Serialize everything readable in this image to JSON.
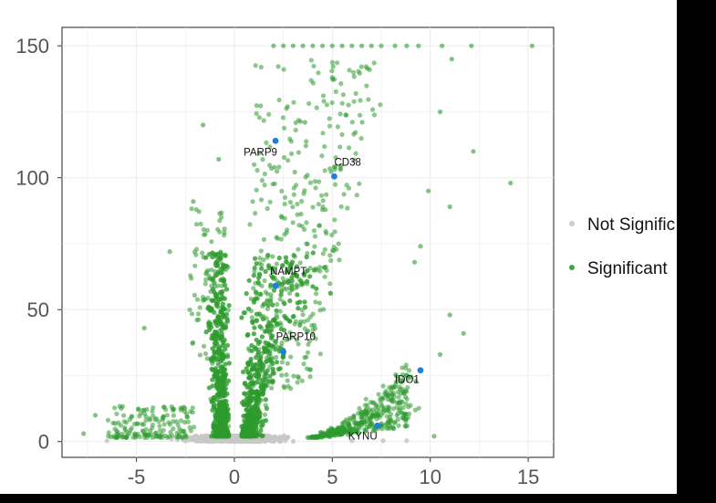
{
  "chart_data": {
    "type": "scatter",
    "title": "",
    "xlabel": "",
    "ylabel": "",
    "xlim": [
      -8.8,
      16.3
    ],
    "ylim": [
      -6,
      157
    ],
    "x_ticks": [
      "-5",
      "0",
      "5",
      "10",
      "15"
    ],
    "y_ticks": [
      "0",
      "50",
      "100",
      "150"
    ],
    "grid": true,
    "legend_position": "right",
    "colors": {
      "not_significant": "#c8c8c8",
      "significant": "#2e9a2e",
      "highlight": "#1e7fe0",
      "background": "#ffffff",
      "grid": "#ebebeb"
    },
    "legend": [
      {
        "label": "Not Signific",
        "color": "#c8c8c8"
      },
      {
        "label": "Significant",
        "color": "#2e9a2e"
      }
    ],
    "highlighted_genes": [
      {
        "gene": "PARP9",
        "x": 2.1,
        "y": 114
      },
      {
        "gene": "CD38",
        "x": 5.1,
        "y": 100.5
      },
      {
        "gene": "NAMPT",
        "x": 2.1,
        "y": 59
      },
      {
        "gene": "PARP10",
        "x": 2.5,
        "y": 34
      },
      {
        "gene": "IDO1",
        "x": 9.5,
        "y": 27
      },
      {
        "gene": "KYNU",
        "x": 7.3,
        "y": 6
      }
    ],
    "significant_points": [
      {
        "x": 2,
        "y": 150
      },
      {
        "x": 2.5,
        "y": 150
      },
      {
        "x": 3,
        "y": 150
      },
      {
        "x": 3.5,
        "y": 150
      },
      {
        "x": 4,
        "y": 150
      },
      {
        "x": 4.5,
        "y": 150
      },
      {
        "x": 5,
        "y": 150
      },
      {
        "x": 5.5,
        "y": 150
      },
      {
        "x": 6,
        "y": 150
      },
      {
        "x": 6.5,
        "y": 150
      },
      {
        "x": 7,
        "y": 150
      },
      {
        "x": 7.5,
        "y": 150
      },
      {
        "x": 8.2,
        "y": 150
      },
      {
        "x": 8.8,
        "y": 150
      },
      {
        "x": 9.4,
        "y": 150
      },
      {
        "x": 10.6,
        "y": 150
      },
      {
        "x": 12.1,
        "y": 150
      },
      {
        "x": 15.2,
        "y": 150
      },
      {
        "x": 11.1,
        "y": 145
      },
      {
        "x": 10.5,
        "y": 125
      },
      {
        "x": 12.2,
        "y": 110
      },
      {
        "x": 14.1,
        "y": 98
      },
      {
        "x": 9.9,
        "y": 95
      },
      {
        "x": 11.0,
        "y": 89
      },
      {
        "x": 9.5,
        "y": 74
      },
      {
        "x": 9.2,
        "y": 68
      },
      {
        "x": 11.0,
        "y": 48
      },
      {
        "x": 11.7,
        "y": 41
      },
      {
        "x": 10.5,
        "y": 33
      },
      {
        "x": 10.2,
        "y": 2
      },
      {
        "x": -1.6,
        "y": 120
      },
      {
        "x": -0.8,
        "y": 107
      },
      {
        "x": -2.1,
        "y": 91
      },
      {
        "x": -3.3,
        "y": 72
      },
      {
        "x": -4.6,
        "y": 43
      },
      {
        "x": -7.7,
        "y": 3
      },
      {
        "x": -7.1,
        "y": 10
      },
      {
        "x": 6.9,
        "y": 141
      },
      {
        "x": 5.0,
        "y": 138
      },
      {
        "x": 3.6,
        "y": 121
      }
    ],
    "not_significant_points": [
      {
        "x": 8.8,
        "y": 0.3
      },
      {
        "x": 7.6,
        "y": 0.3
      },
      {
        "x": 6.0,
        "y": 0.3
      },
      {
        "x": -6.5,
        "y": 0.3
      }
    ]
  }
}
